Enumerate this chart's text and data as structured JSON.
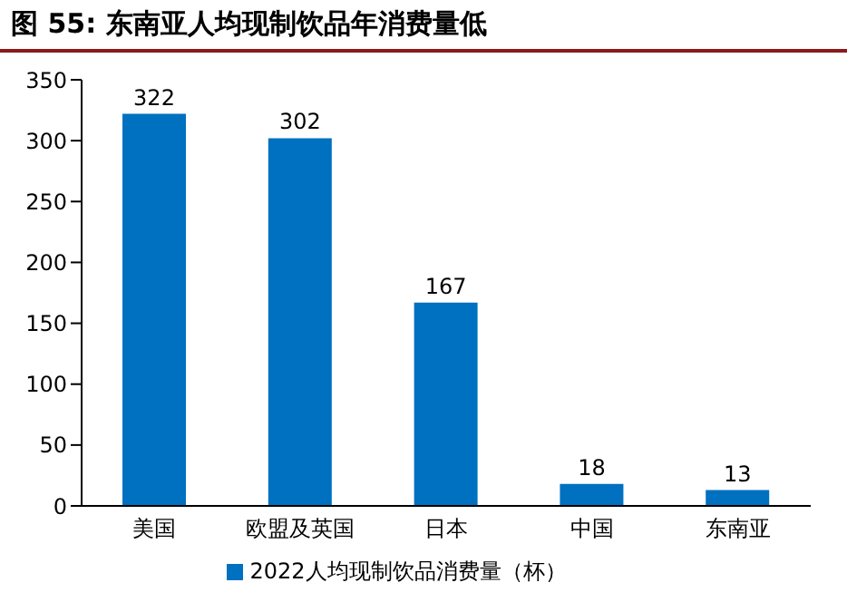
{
  "chart_data": {
    "type": "bar",
    "title": "图 55:  东南亚人均现制饮品年消费量低",
    "categories": [
      "美国",
      "欧盟及英国",
      "日本",
      "中国",
      "东南亚"
    ],
    "series": [
      {
        "name": "2022人均现制饮品消费量（杯）",
        "color": "#0070c0",
        "values": [
          322,
          302,
          167,
          18,
          13
        ]
      }
    ],
    "ylim": [
      0,
      350
    ],
    "yticks": [
      0,
      50,
      100,
      150,
      200,
      250,
      300,
      350
    ],
    "grid": false,
    "legend": "bottom",
    "data_labels": true
  }
}
